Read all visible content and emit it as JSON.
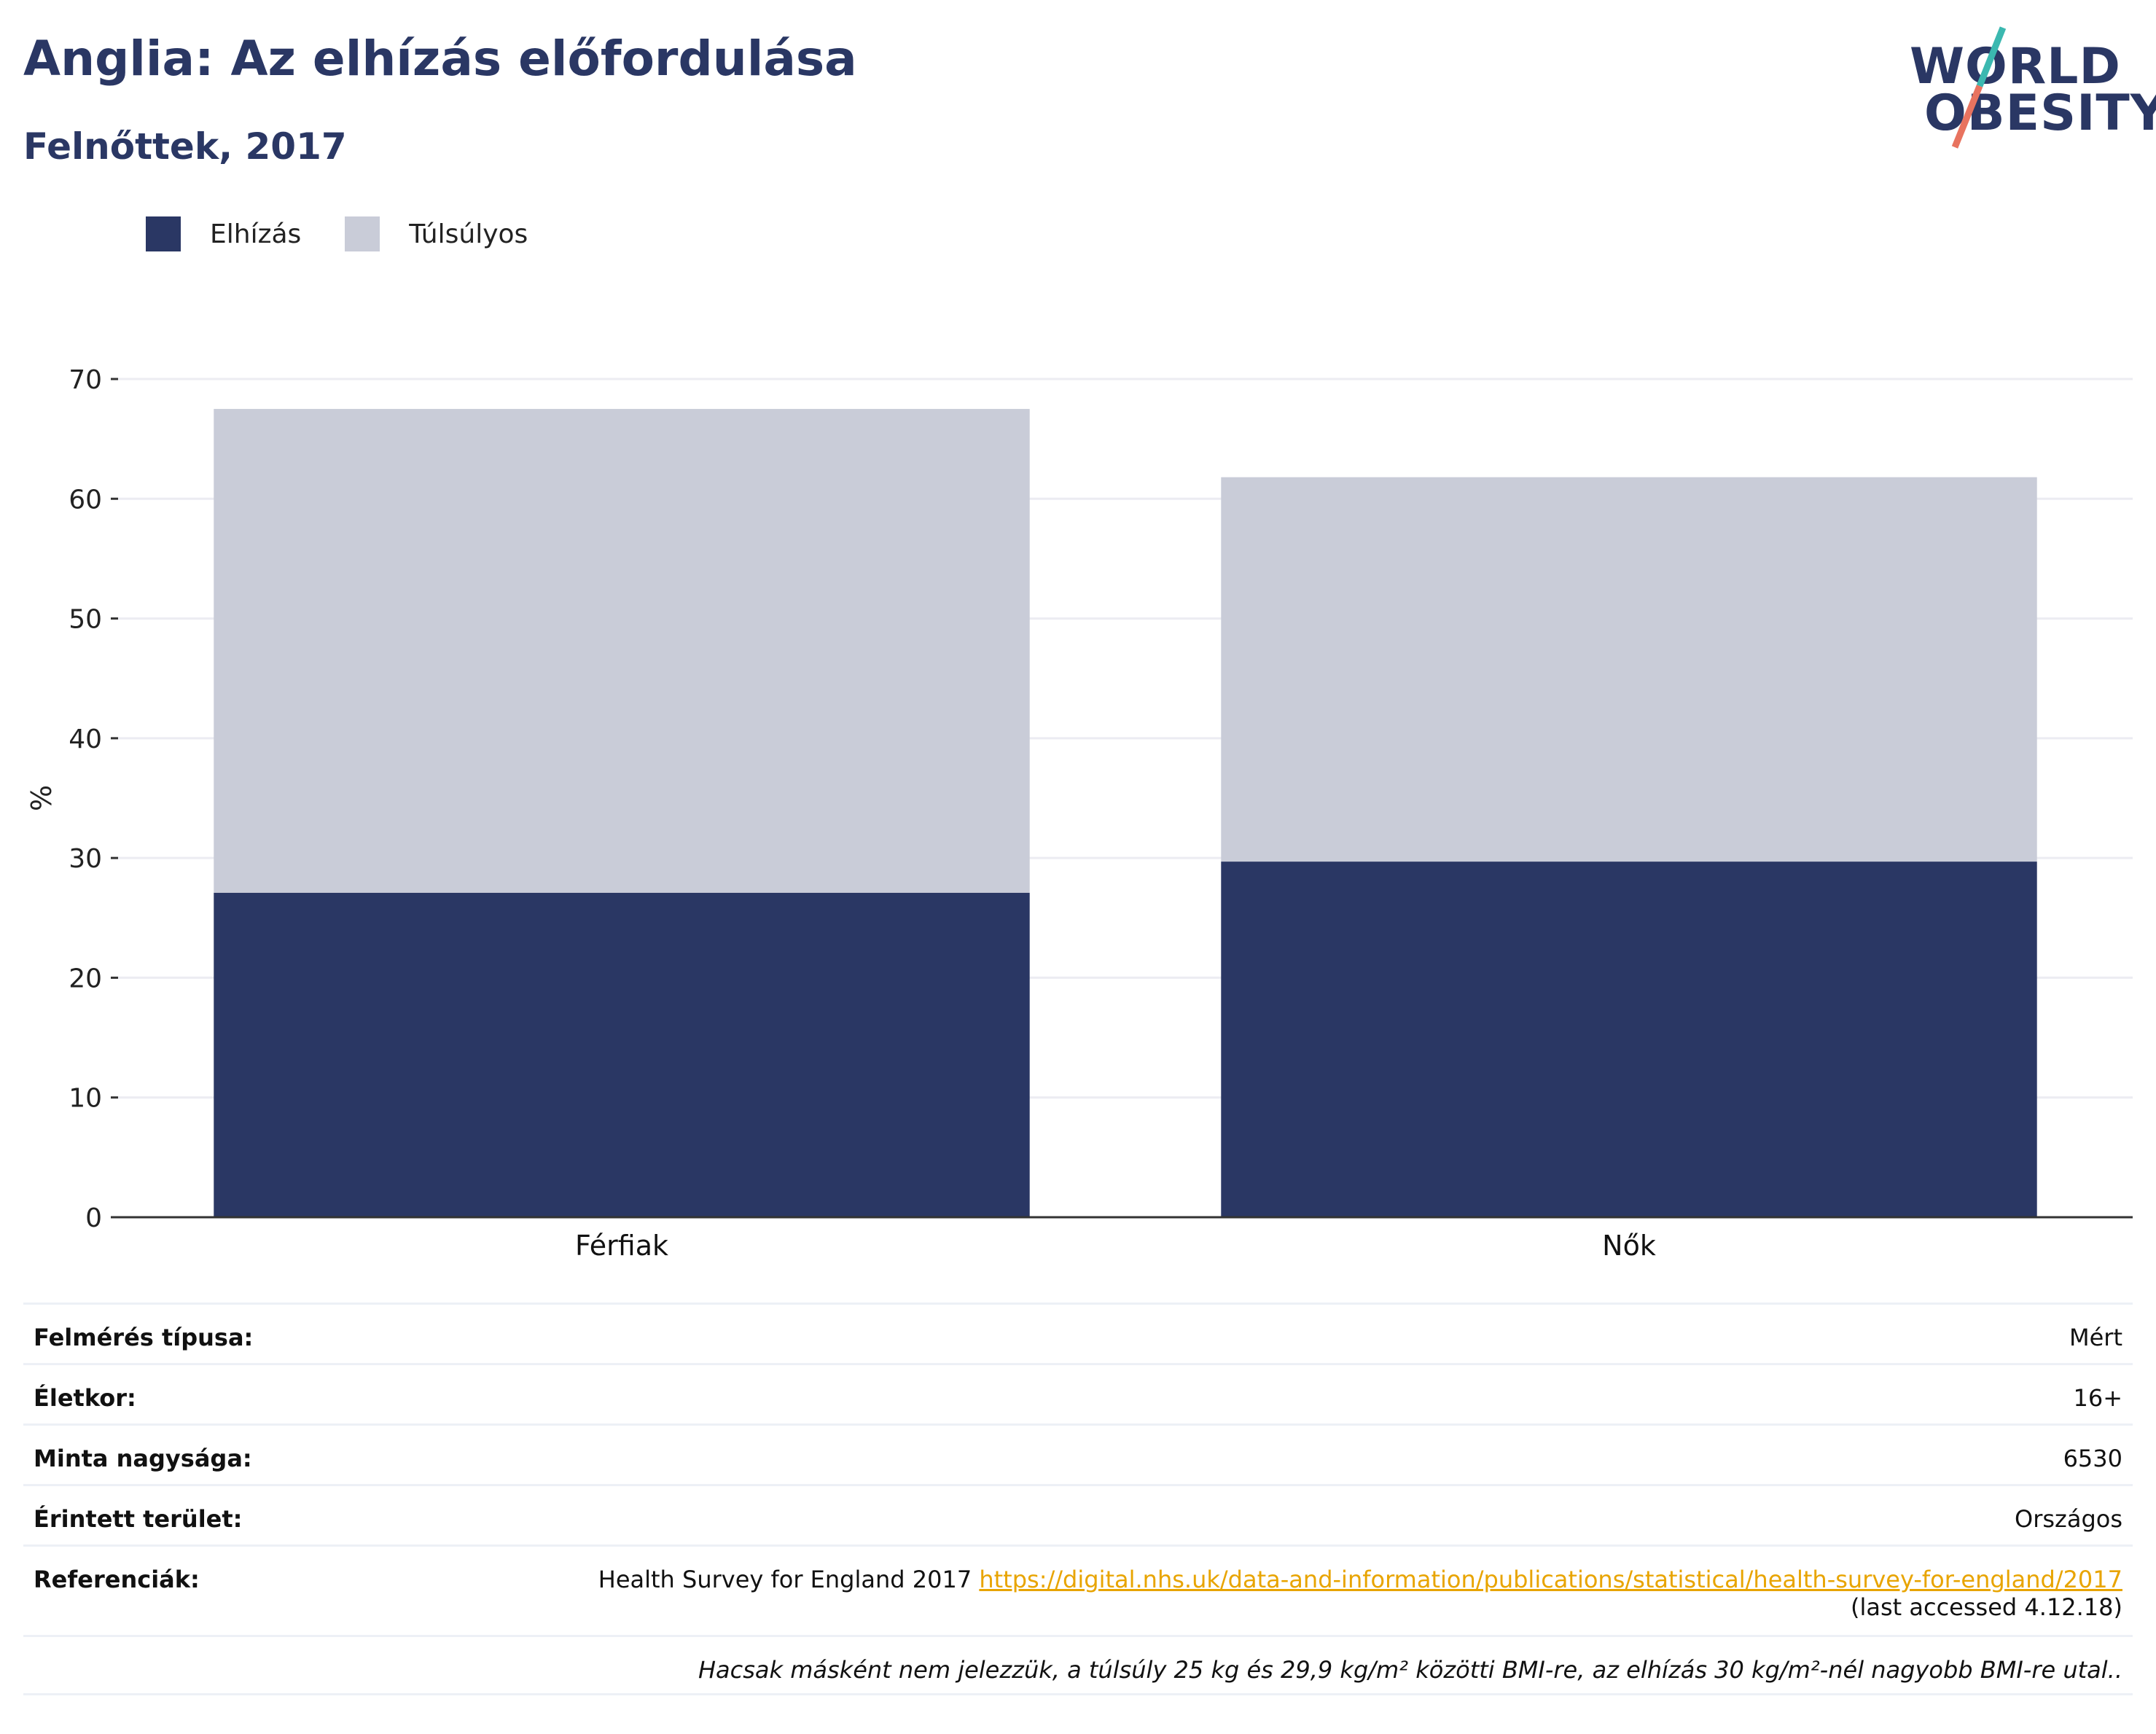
{
  "header": {
    "title": "Anglia: Az elhízás előfordulása",
    "subtitle": "Felnőttek, 2017"
  },
  "logo": {
    "line1": "WORLD",
    "line2": "OBESITY"
  },
  "legend": [
    {
      "label": "Elhízás",
      "color": "#2a3764"
    },
    {
      "label": "Túlsúlyos",
      "color": "#c9ccd8"
    }
  ],
  "chart_data": {
    "type": "bar",
    "stacked": true,
    "categories": [
      "Férfiak",
      "Nők"
    ],
    "series": [
      {
        "name": "Elhízás",
        "values": [
          27.1,
          29.7
        ],
        "color": "#2a3764"
      },
      {
        "name": "Túlsúlyos",
        "values": [
          40.4,
          32.1
        ],
        "color": "#c9ccd8"
      }
    ],
    "ylabel": "%",
    "ylim": [
      0,
      70
    ],
    "yticks": [
      0,
      10,
      20,
      30,
      40,
      50,
      60,
      70
    ],
    "grid": true,
    "legend_position": "top-left"
  },
  "info": {
    "rows": [
      {
        "key": "Felmérés típusa:",
        "value": "Mért"
      },
      {
        "key": "Életkor:",
        "value": "16+"
      },
      {
        "key": "Minta nagysága:",
        "value": "6530"
      },
      {
        "key": "Érintett terület:",
        "value": "Országos"
      }
    ],
    "references": {
      "key": "Referenciák:",
      "text": "Health Survey for England 2017 ",
      "link": "https://digital.nhs.uk/data-and-information/publications/statistical/health-survey-for-england/2017",
      "accessed": "(last accessed 4.12.18)"
    },
    "note": "Hacsak másként nem jelezzük, a túlsúly 25 kg és 29,9 kg/m² közötti BMI-re, az elhízás 30 kg/m²-nél nagyobb BMI-re utal.."
  }
}
